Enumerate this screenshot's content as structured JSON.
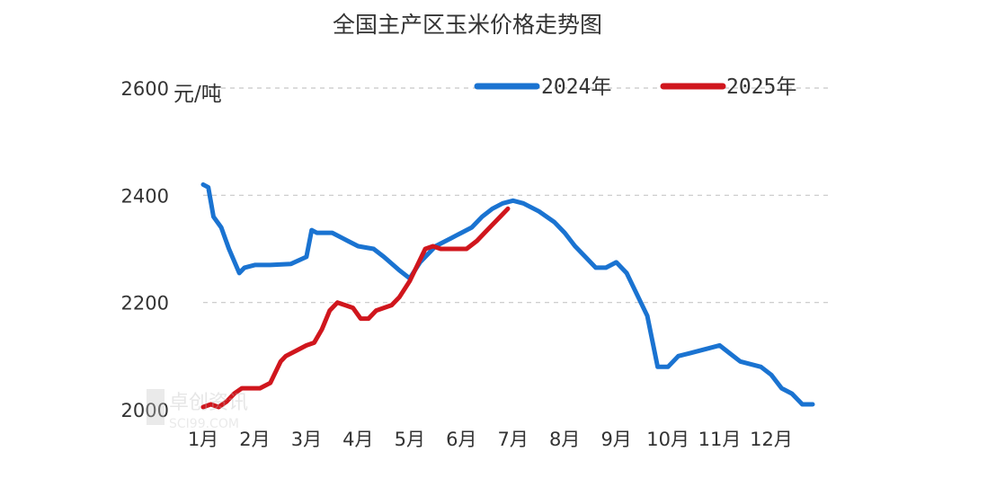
{
  "chart_data": {
    "type": "line",
    "title": "全国主产区玉米价格走势图",
    "ylabel": "元/吨",
    "ylim": [
      2000,
      2600
    ],
    "yticks": [
      2000,
      2200,
      2400,
      2600
    ],
    "categories": [
      "1月",
      "2月",
      "3月",
      "4月",
      "5月",
      "6月",
      "7月",
      "8月",
      "9月",
      "10月",
      "11月",
      "12月"
    ],
    "grid": true,
    "legend_position": "top-right",
    "series": [
      {
        "name": "2024年",
        "color": "#1a73d1",
        "x": [
          1.0,
          1.1,
          1.2,
          1.35,
          1.5,
          1.7,
          1.8,
          2.0,
          2.3,
          2.7,
          3.0,
          3.1,
          3.2,
          3.5,
          3.8,
          4.0,
          4.3,
          4.5,
          4.8,
          5.0,
          5.2,
          5.5,
          5.8,
          6.0,
          6.2,
          6.4,
          6.6,
          6.8,
          7.0,
          7.2,
          7.5,
          7.8,
          8.0,
          8.2,
          8.4,
          8.6,
          8.8,
          9.0,
          9.2,
          9.4,
          9.6,
          9.8,
          10.0,
          10.2,
          10.4,
          10.6,
          10.8,
          11.0,
          11.2,
          11.4,
          11.6,
          11.8,
          12.0,
          12.2,
          12.4,
          12.6,
          12.8
        ],
        "values": [
          2420,
          2415,
          2360,
          2340,
          2300,
          2255,
          2265,
          2270,
          2270,
          2272,
          2285,
          2335,
          2330,
          2330,
          2315,
          2305,
          2300,
          2285,
          2260,
          2245,
          2275,
          2305,
          2320,
          2330,
          2340,
          2360,
          2375,
          2385,
          2390,
          2385,
          2370,
          2350,
          2330,
          2305,
          2285,
          2265,
          2265,
          2275,
          2255,
          2215,
          2175,
          2080,
          2080,
          2100,
          2105,
          2110,
          2115,
          2120,
          2105,
          2090,
          2085,
          2080,
          2065,
          2040,
          2030,
          2010,
          2010
        ]
      },
      {
        "name": "2025年",
        "color": "#d0161d",
        "x": [
          1.0,
          1.15,
          1.3,
          1.45,
          1.6,
          1.75,
          1.9,
          2.1,
          2.3,
          2.5,
          2.6,
          2.8,
          3.0,
          3.15,
          3.3,
          3.45,
          3.6,
          3.75,
          3.9,
          4.05,
          4.2,
          4.35,
          4.5,
          4.65,
          4.8,
          5.0,
          5.15,
          5.3,
          5.45,
          5.6,
          5.75,
          5.9,
          6.1,
          6.3,
          6.45,
          6.6,
          6.75,
          6.9
        ],
        "values": [
          2005,
          2010,
          2005,
          2015,
          2030,
          2040,
          2040,
          2040,
          2050,
          2090,
          2100,
          2110,
          2120,
          2125,
          2150,
          2185,
          2200,
          2195,
          2190,
          2170,
          2170,
          2185,
          2190,
          2195,
          2210,
          2240,
          2270,
          2300,
          2305,
          2300,
          2300,
          2300,
          2300,
          2315,
          2330,
          2345,
          2360,
          2375
        ]
      }
    ]
  },
  "watermark": "卓创资讯 SCI99.COM"
}
